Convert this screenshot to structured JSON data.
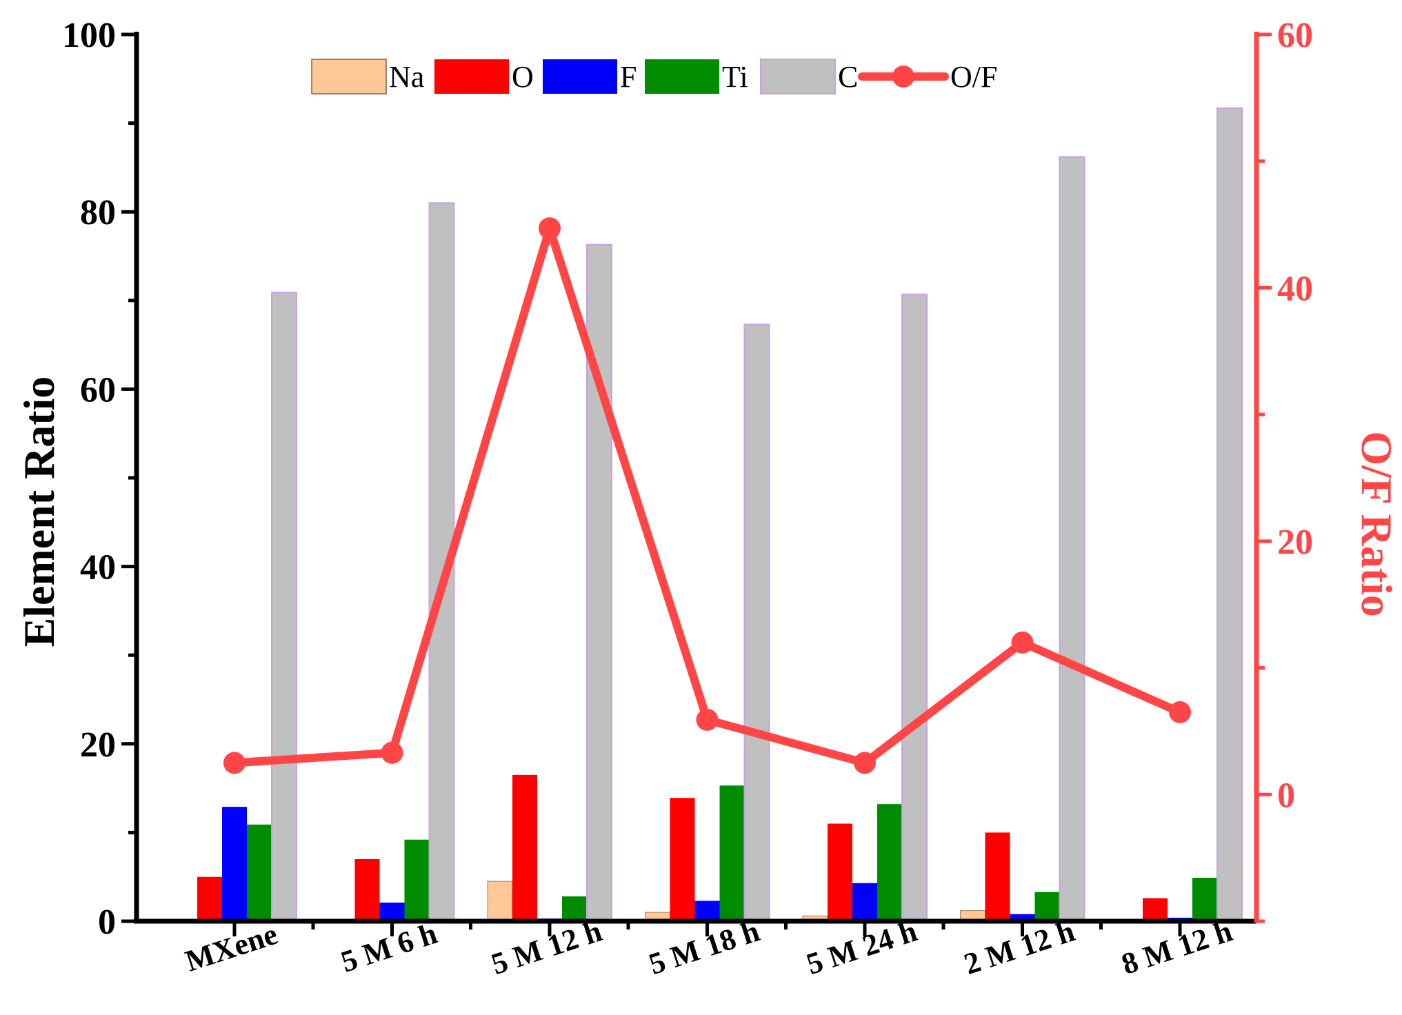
{
  "chart_data": {
    "type": "bar",
    "categories": [
      "MXene",
      "5 M 6 h",
      "5 M 12 h",
      "5 M 18 h",
      "5 M 24 h",
      "2 M 12 h",
      "8 M 12 h"
    ],
    "series": [
      {
        "name": "Na",
        "color": "#FFC896",
        "axis": "left",
        "values": [
          0.0,
          0.2,
          4.5,
          1.0,
          0.6,
          1.2,
          0.0
        ]
      },
      {
        "name": "O",
        "color": "#FF0000",
        "axis": "left",
        "values": [
          5.0,
          7.0,
          16.5,
          13.9,
          11.0,
          10.0,
          2.6
        ]
      },
      {
        "name": "F",
        "color": "#0000FF",
        "axis": "left",
        "values": [
          12.9,
          2.1,
          0.3,
          2.3,
          4.3,
          0.8,
          0.4
        ]
      },
      {
        "name": "Ti",
        "color": "#008C00",
        "axis": "left",
        "values": [
          10.9,
          9.2,
          2.8,
          15.3,
          13.2,
          3.3,
          4.9
        ]
      },
      {
        "name": "C",
        "color": "#C0C0C0",
        "axis": "left",
        "values": [
          70.9,
          81.0,
          76.3,
          67.3,
          70.7,
          86.2,
          91.7
        ]
      }
    ],
    "line_series": {
      "name": "O/F",
      "color": "#FF4545",
      "axis": "right",
      "values": [
        2.5,
        3.3,
        44.7,
        5.9,
        2.5,
        12.0,
        6.5
      ]
    },
    "ylabel": "Element Ratio",
    "y2label": "O/F Ratio",
    "ylim": [
      0,
      100
    ],
    "y2lim": [
      -10,
      60
    ],
    "yticks": [
      "0",
      "20",
      "40",
      "60",
      "80",
      "100"
    ],
    "y2ticks": [
      "0",
      "20",
      "40",
      "60"
    ],
    "legend_position": "top",
    "right_axis_color": "#FF4545"
  }
}
